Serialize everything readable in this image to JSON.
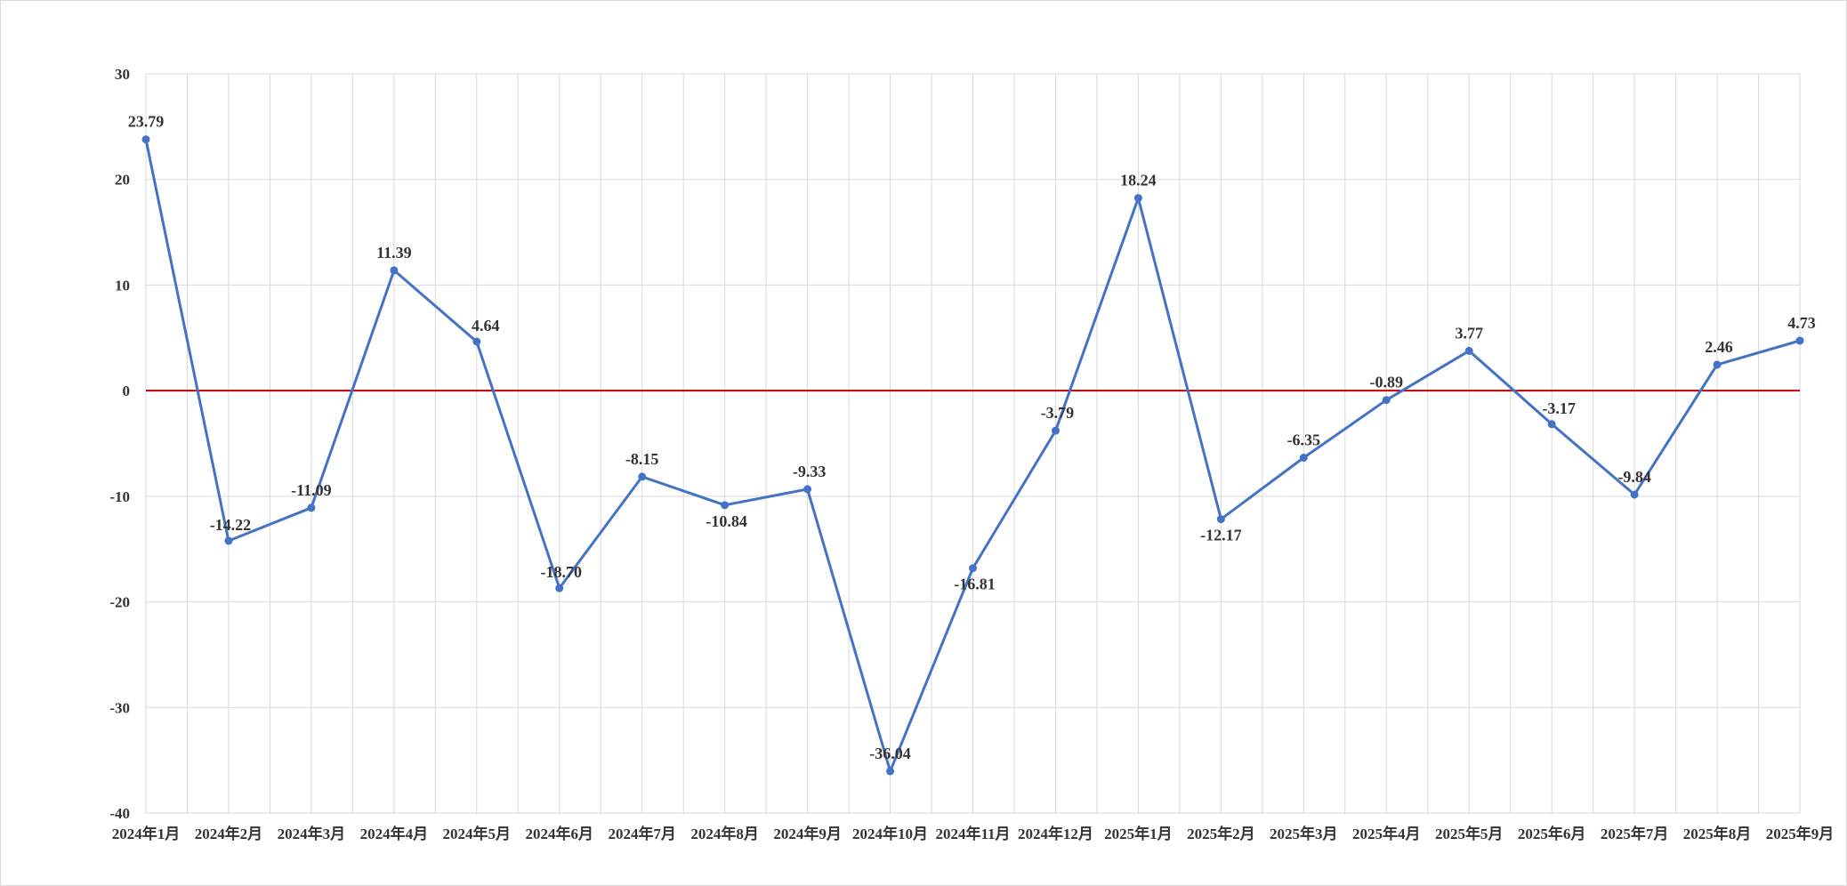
{
  "chart_data": {
    "type": "line",
    "title": "",
    "xlabel": "",
    "ylabel": "",
    "ylim": [
      -40,
      30
    ],
    "yticks": [
      30,
      20,
      10,
      0,
      -10,
      -20,
      -30,
      -40
    ],
    "grid": true,
    "categories": [
      "2024年1月",
      "2024年2月",
      "2024年3月",
      "2024年4月",
      "2024年5月",
      "2024年6月",
      "2024年7月",
      "2024年8月",
      "2024年9月",
      "2024年10月",
      "2024年11月",
      "2024年12月",
      "2025年1月",
      "2025年2月",
      "2025年3月",
      "2025年4月",
      "2025年5月",
      "2025年6月",
      "2025年7月",
      "2025年8月",
      "2025年9月"
    ],
    "series": [
      {
        "values": [
          23.79,
          -14.22,
          -11.09,
          11.39,
          4.64,
          -18.7,
          -8.15,
          -10.84,
          -9.33,
          -36.04,
          -16.81,
          -3.79,
          18.24,
          -12.17,
          -6.35,
          -0.89,
          3.77,
          -3.17,
          -9.84,
          2.46,
          4.73
        ],
        "labels": [
          "23.79",
          "-14.22",
          "-11.09",
          "11.39",
          "4.64",
          "-18.70",
          "-8.15",
          "-10.84",
          "-9.33",
          "-36.04",
          "-16.81",
          "-3.79",
          "18.24",
          "-12.17",
          "-6.35",
          "-0.89",
          "3.77",
          "-3.17",
          "-9.84",
          "2.46",
          "4.73"
        ],
        "color": "#4472C4"
      }
    ],
    "reference_line": {
      "value": 0,
      "color": "#C00000"
    },
    "gridline_color": "#d9d9d9"
  }
}
